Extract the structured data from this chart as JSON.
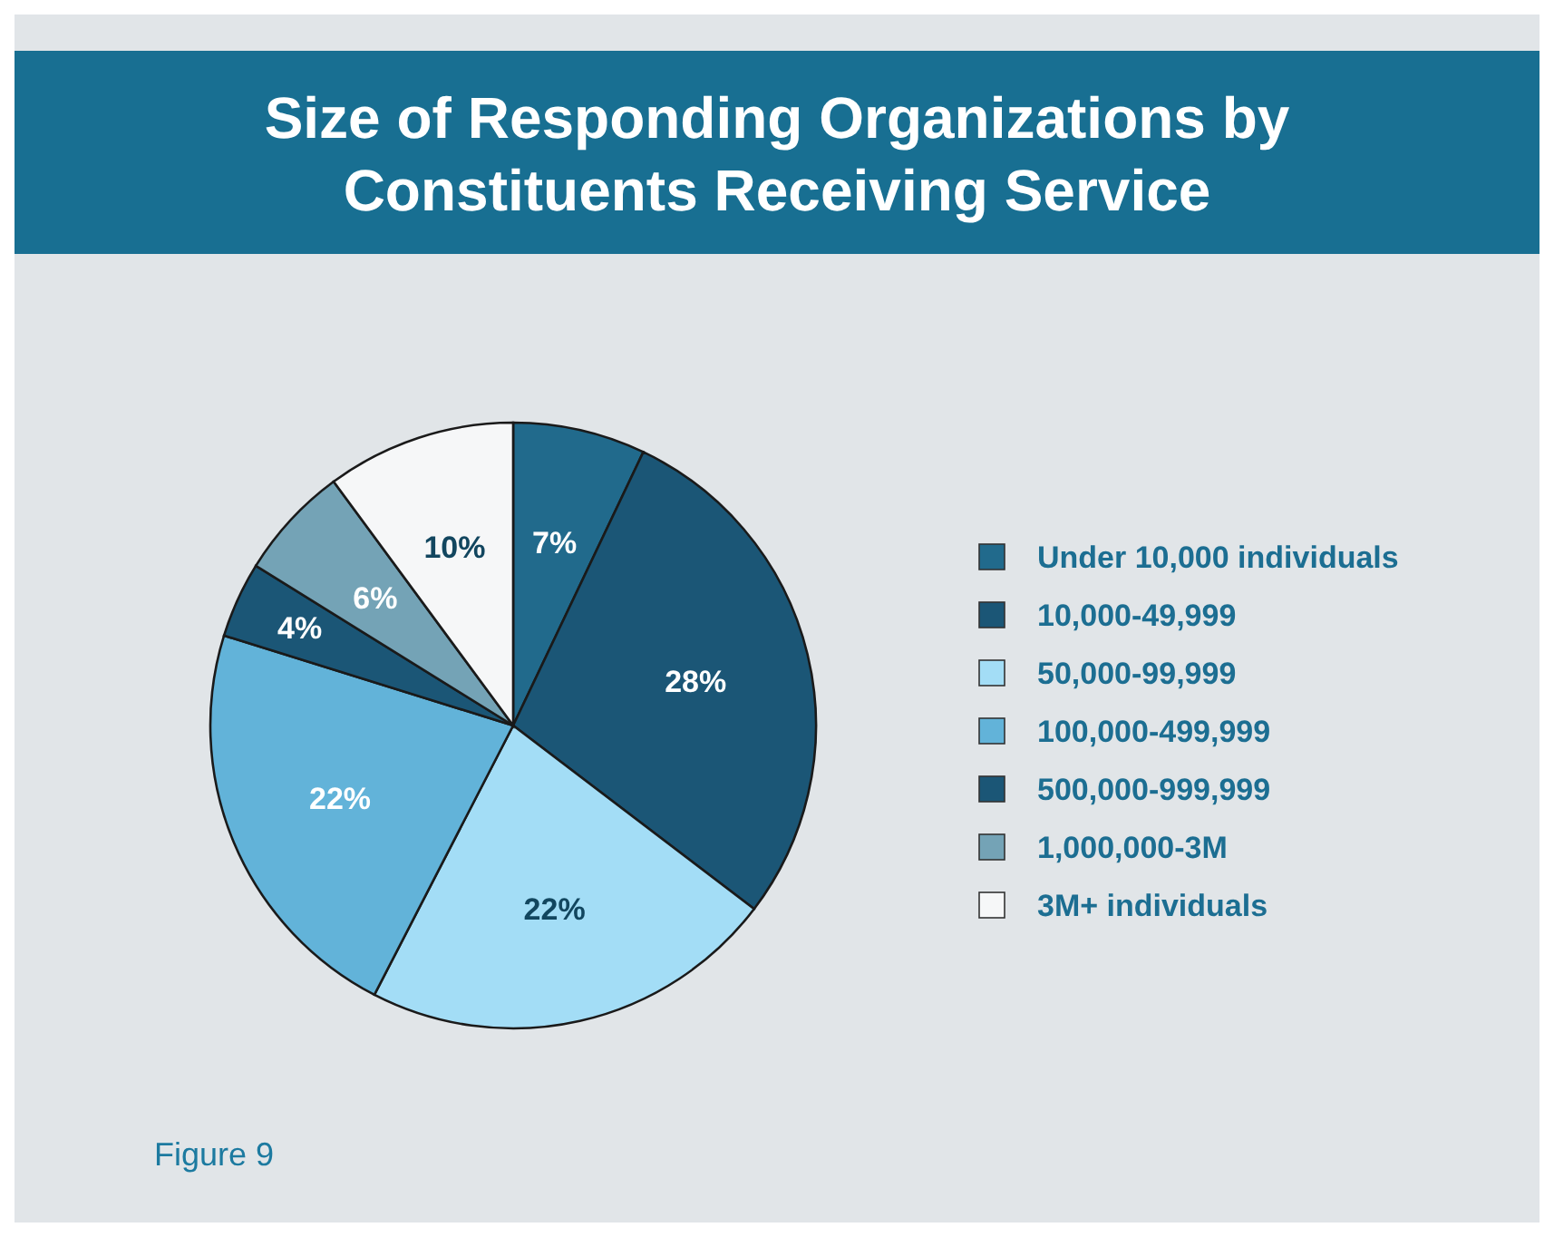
{
  "chart_data": {
    "type": "pie",
    "title": "Size of Responding Organizations by Constituents Receiving Service",
    "categories": [
      "Under 10,000 individuals",
      "10,000-49,999",
      "50,000-99,999",
      "100,000-499,999",
      "500,000-999,999",
      "1,000,000-3M",
      "3M+ individuals"
    ],
    "values": [
      7,
      28,
      22,
      22,
      4,
      6,
      10
    ],
    "colors": [
      "#216a8c",
      "#1b5676",
      "#a3ddf6",
      "#62b3d9",
      "#1b5676",
      "#74a3b6",
      "#f6f7f8"
    ],
    "value_labels": [
      "7%",
      "28%",
      "22%",
      "22%",
      "4%",
      "6%",
      "10%"
    ],
    "legend": "right",
    "annotations": [
      "Figure 9"
    ]
  }
}
